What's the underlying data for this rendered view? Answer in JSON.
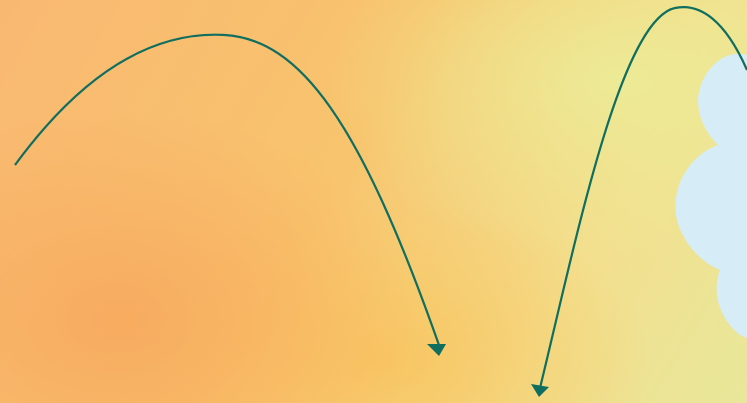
{
  "colors": {
    "arrow": "#0f6e5f",
    "cloud": "#d6ecf7"
  },
  "arrows": [
    {
      "name": "left-arc-arrow"
    },
    {
      "name": "right-arc-arrow"
    }
  ],
  "shapes": [
    {
      "name": "cloud-shape"
    }
  ]
}
